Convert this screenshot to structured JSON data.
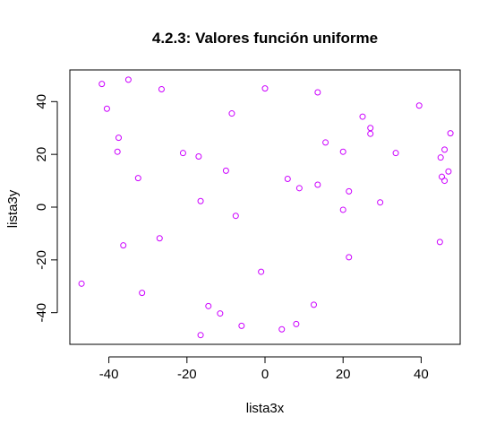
{
  "chart_data": {
    "type": "scatter",
    "title": "4.2.3: Valores función uniforme",
    "xlabel": "lista3x",
    "ylabel": "lista3y",
    "xlim": [
      -50,
      50
    ],
    "ylim": [
      -52,
      52
    ],
    "xticks": [
      -40,
      -20,
      0,
      20,
      40
    ],
    "yticks": [
      -40,
      -20,
      0,
      20,
      40
    ],
    "xtick_labels": [
      "-40",
      "-20",
      "0",
      "20",
      "40"
    ],
    "ytick_labels": [
      "-40",
      "-20",
      "0",
      "20",
      "40"
    ],
    "grid": false,
    "marker_color": "#cc00ff",
    "points": [
      {
        "x": -41.8,
        "y": 46.7
      },
      {
        "x": -35.0,
        "y": 48.3
      },
      {
        "x": -26.5,
        "y": 44.7
      },
      {
        "x": 0.0,
        "y": 45.0
      },
      {
        "x": 13.5,
        "y": 43.5
      },
      {
        "x": -40.5,
        "y": 37.3
      },
      {
        "x": -8.5,
        "y": 35.5
      },
      {
        "x": 39.5,
        "y": 38.5
      },
      {
        "x": 25.0,
        "y": 34.3
      },
      {
        "x": 27.0,
        "y": 30.0
      },
      {
        "x": 27.0,
        "y": 27.8
      },
      {
        "x": 47.5,
        "y": 28.0
      },
      {
        "x": -37.5,
        "y": 26.3
      },
      {
        "x": 15.5,
        "y": 24.5
      },
      {
        "x": 46.0,
        "y": 21.8
      },
      {
        "x": 45.0,
        "y": 18.8
      },
      {
        "x": -37.8,
        "y": 21.0
      },
      {
        "x": -21.0,
        "y": 20.5
      },
      {
        "x": -17.0,
        "y": 19.2
      },
      {
        "x": 20.0,
        "y": 21.0
      },
      {
        "x": 33.5,
        "y": 20.5
      },
      {
        "x": -10.0,
        "y": 13.8
      },
      {
        "x": 47.0,
        "y": 13.5
      },
      {
        "x": -32.5,
        "y": 11.0
      },
      {
        "x": 5.8,
        "y": 10.7
      },
      {
        "x": 45.3,
        "y": 11.5
      },
      {
        "x": 46.0,
        "y": 10.0
      },
      {
        "x": 13.5,
        "y": 8.5
      },
      {
        "x": 8.8,
        "y": 7.2
      },
      {
        "x": 21.5,
        "y": 6.0
      },
      {
        "x": -16.5,
        "y": 2.3
      },
      {
        "x": 29.5,
        "y": 1.8
      },
      {
        "x": 20.0,
        "y": -1.0
      },
      {
        "x": -7.5,
        "y": -3.3
      },
      {
        "x": -27.0,
        "y": -11.8
      },
      {
        "x": -36.3,
        "y": -14.5
      },
      {
        "x": 44.8,
        "y": -13.2
      },
      {
        "x": 21.5,
        "y": -19.0
      },
      {
        "x": -1.0,
        "y": -24.5
      },
      {
        "x": -47.0,
        "y": -29.0
      },
      {
        "x": -31.5,
        "y": -32.5
      },
      {
        "x": 12.5,
        "y": -37.0
      },
      {
        "x": -14.5,
        "y": -37.5
      },
      {
        "x": -11.5,
        "y": -40.3
      },
      {
        "x": -6.0,
        "y": -45.0
      },
      {
        "x": 8.0,
        "y": -44.3
      },
      {
        "x": 4.3,
        "y": -46.3
      },
      {
        "x": -16.5,
        "y": -48.5
      }
    ]
  }
}
